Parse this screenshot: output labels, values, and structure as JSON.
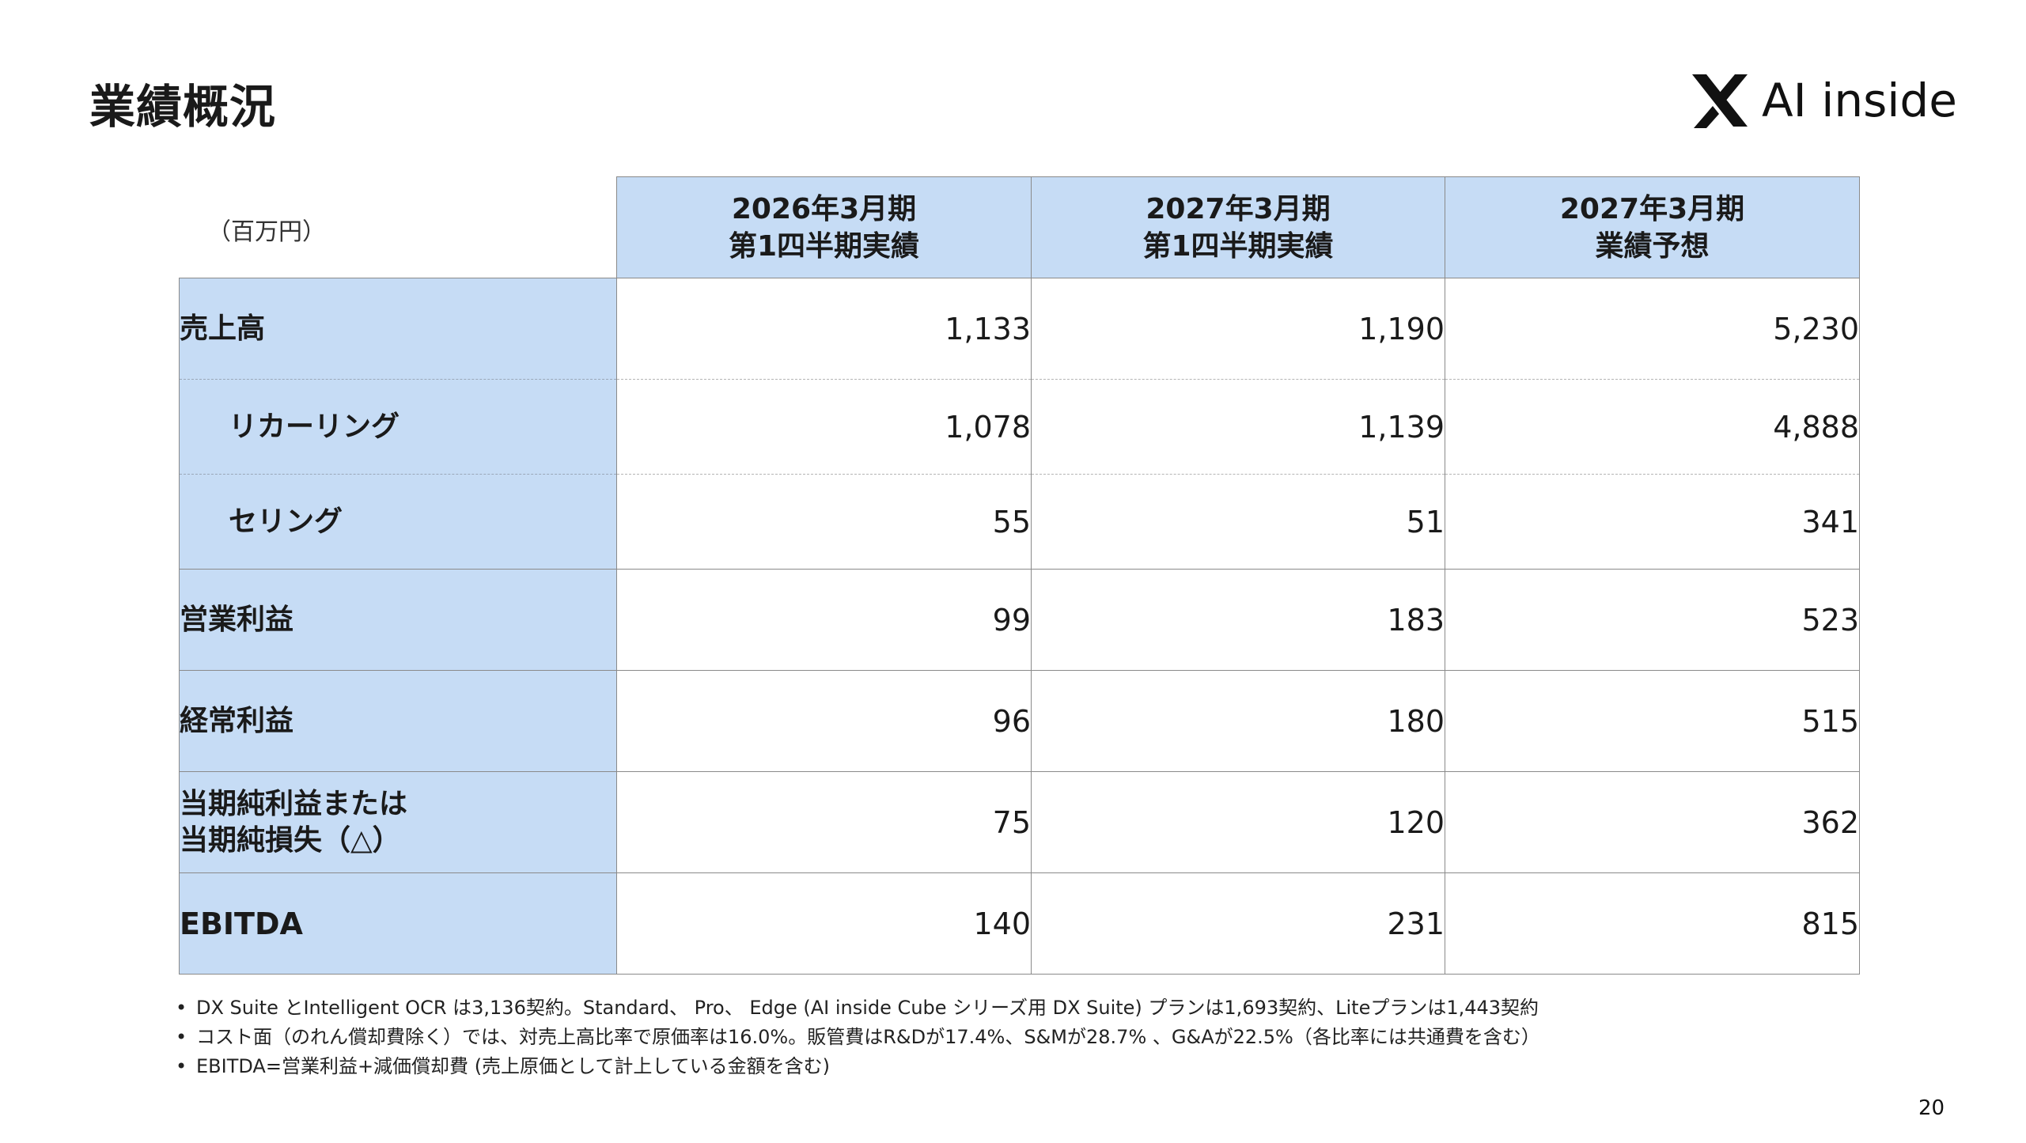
{
  "page_title": "業績概況",
  "logo": {
    "text": "AI inside",
    "icon": "ai-inside-x-logo-icon",
    "color": "#111111"
  },
  "unit_label": "（百万円）",
  "columns": [
    {
      "line1": "2026年3月期",
      "line2": "第1四半期実績"
    },
    {
      "line1": "2027年3月期",
      "line2": "第1四半期実績"
    },
    {
      "line1": "2027年3月期",
      "line2": "業績予想"
    }
  ],
  "rows": [
    {
      "label": "売上高",
      "values": [
        "1,133",
        "1,190",
        "5,230"
      ]
    },
    {
      "label": "リカーリング",
      "values": [
        "1,078",
        "1,139",
        "4,888"
      ]
    },
    {
      "label": "セリング",
      "values": [
        "55",
        "51",
        "341"
      ]
    },
    {
      "label": "営業利益",
      "values": [
        "99",
        "183",
        "523"
      ]
    },
    {
      "label": "経常利益",
      "values": [
        "96",
        "180",
        "515"
      ]
    },
    {
      "label_line1": "当期純利益または",
      "label_line2": "当期純損失（△）",
      "values": [
        "75",
        "120",
        "362"
      ]
    },
    {
      "label": "EBITDA",
      "values": [
        "140",
        "231",
        "815"
      ]
    }
  ],
  "notes": [
    "DX Suite とIntelligent OCR は3,136契約。Standard、 Pro、 Edge (AI inside Cube シリーズ用 DX Suite) プランは1,693契約、Liteプランは1,443契約",
    "コスト面（のれん償却費除く）では、対売上高比率で原価率は16.0%。販管費はR&Dが17.4%、S&Mが28.7% 、G&Aが22.5%（各比率には共通費を含む）",
    "EBITDA=営業利益+減価償却費 (売上原価として計上している金額を含む)"
  ],
  "bullet": "•",
  "page_number": "20",
  "colors": {
    "header_fill": "#c6dcf5",
    "border": "#8a8a8a"
  }
}
